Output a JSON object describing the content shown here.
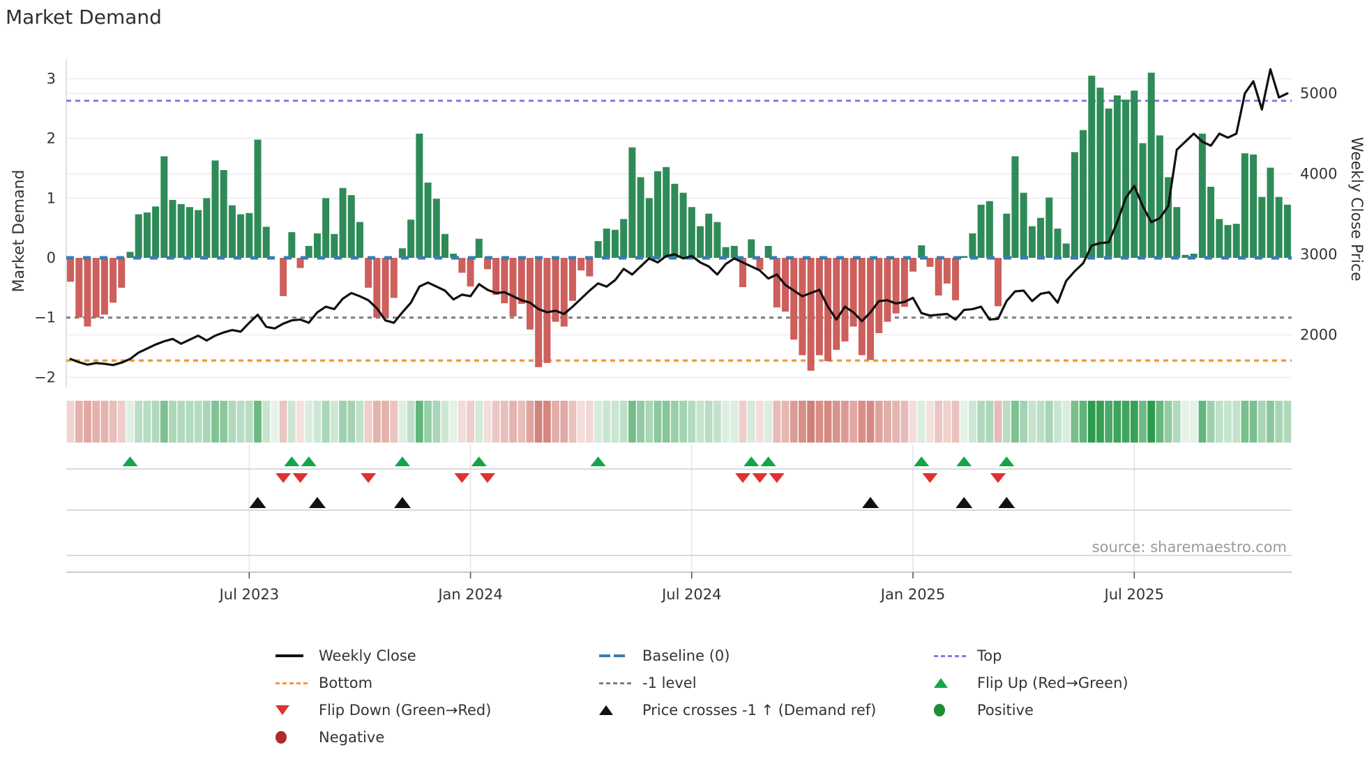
{
  "title": "Market Demand",
  "source_text": "source: sharemaestro.com",
  "axes": {
    "left_label": "Market Demand",
    "right_label": "Weekly Close Price",
    "left_ticks": [
      "3",
      "2",
      "1",
      "0",
      "−1",
      "−2"
    ],
    "left_tick_values": [
      3,
      2,
      1,
      0,
      -1,
      -2
    ],
    "right_ticks": [
      "5000",
      "4000",
      "3000",
      "2000"
    ],
    "right_tick_values": [
      5000,
      4000,
      3000,
      2000
    ],
    "x_ticks": [
      "Jul 2023",
      "Jan 2024",
      "Jul 2024",
      "Jan 2025",
      "Jul 2025"
    ],
    "x_tick_weeks": [
      21,
      47,
      73,
      99,
      125
    ]
  },
  "colors": {
    "bar_positive": "#2e8b57",
    "bar_negative": "#cd5f5c",
    "baseline_blue": "#3a7cb0",
    "top_purple": "#8678e9",
    "bottom_orange": "#f29b38",
    "minus1_gray": "#7f7f7f",
    "price_line": "#101010",
    "flip_up_green": "#14a44a",
    "flip_down_red": "#e03131",
    "cross_black": "#111111",
    "positive_circle": "#1d8c34",
    "negative_circle": "#b02a2a",
    "grid": "#ebebf0",
    "panel_line": "#cfcfcf",
    "tick_text": "#333333",
    "source_gray": "#9a9a9a"
  },
  "chart_data": {
    "type": "bar+line",
    "title": "Market Demand",
    "ylabel_left": "Market Demand",
    "ylabel_right": "Weekly Close Price",
    "n_weeks": 144,
    "ylim_demand": [
      -2.2,
      3.2
    ],
    "ylim_price": [
      1500,
      5400
    ],
    "baseline_level": 0,
    "top_level": 2.63,
    "bottom_level": -1.72,
    "minus1_level": -1,
    "demand": [
      -0.4,
      -1.0,
      -1.15,
      -1.0,
      -0.95,
      -0.75,
      -0.5,
      0.1,
      0.73,
      0.76,
      0.86,
      1.7,
      0.97,
      0.9,
      0.85,
      0.8,
      1.0,
      1.63,
      1.47,
      0.88,
      0.73,
      0.75,
      1.98,
      0.52,
      0.0,
      -0.64,
      0.43,
      -0.17,
      0.2,
      0.41,
      1.0,
      0.4,
      1.17,
      1.05,
      0.6,
      -0.5,
      -1.0,
      -1.0,
      -0.67,
      0.16,
      0.64,
      2.08,
      1.26,
      0.99,
      0.4,
      0.07,
      -0.25,
      -0.48,
      0.32,
      -0.19,
      -0.62,
      -0.76,
      -0.98,
      -0.77,
      -1.2,
      -1.83,
      -1.76,
      -1.07,
      -1.15,
      -0.72,
      -0.21,
      -0.31,
      0.28,
      0.49,
      0.47,
      0.65,
      1.85,
      1.35,
      1.0,
      1.45,
      1.52,
      1.24,
      1.09,
      0.85,
      0.53,
      0.74,
      0.6,
      0.18,
      0.2,
      -0.49,
      0.31,
      -0.2,
      0.2,
      -0.83,
      -0.9,
      -1.37,
      -1.63,
      -1.89,
      -1.63,
      -1.73,
      -1.54,
      -1.4,
      -1.15,
      -1.63,
      -1.71,
      -1.26,
      -1.07,
      -0.93,
      -0.82,
      -0.23,
      0.21,
      -0.15,
      -0.63,
      -0.43,
      -0.71,
      0.03,
      0.41,
      0.89,
      0.95,
      -0.81,
      0.74,
      1.7,
      1.09,
      0.53,
      0.67,
      1.01,
      0.49,
      0.24,
      1.77,
      2.14,
      3.05,
      2.85,
      2.5,
      2.72,
      2.65,
      2.8,
      1.92,
      3.1,
      2.05,
      1.35,
      0.85,
      0.05,
      0.07,
      2.08,
      1.19,
      0.65,
      0.55,
      0.57,
      1.75,
      1.73,
      1.02,
      1.51,
      1.02,
      0.89
    ],
    "price": [
      1700,
      1660,
      1630,
      1650,
      1640,
      1625,
      1655,
      1700,
      1780,
      1830,
      1880,
      1920,
      1950,
      1890,
      1940,
      1990,
      1930,
      1990,
      2030,
      2060,
      2040,
      2150,
      2250,
      2100,
      2080,
      2140,
      2180,
      2190,
      2150,
      2280,
      2350,
      2320,
      2450,
      2520,
      2480,
      2430,
      2330,
      2180,
      2150,
      2280,
      2400,
      2600,
      2650,
      2600,
      2550,
      2440,
      2500,
      2480,
      2630,
      2560,
      2520,
      2530,
      2480,
      2430,
      2400,
      2320,
      2280,
      2300,
      2260,
      2350,
      2450,
      2550,
      2640,
      2600,
      2680,
      2820,
      2750,
      2850,
      2950,
      2900,
      2980,
      3000,
      2950,
      2980,
      2900,
      2850,
      2750,
      2880,
      2950,
      2900,
      2850,
      2800,
      2700,
      2750,
      2620,
      2550,
      2480,
      2520,
      2560,
      2350,
      2190,
      2350,
      2280,
      2170,
      2280,
      2420,
      2430,
      2390,
      2410,
      2460,
      2270,
      2240,
      2250,
      2260,
      2190,
      2310,
      2320,
      2350,
      2190,
      2200,
      2420,
      2540,
      2550,
      2420,
      2510,
      2530,
      2400,
      2670,
      2790,
      2890,
      3110,
      3140,
      3150,
      3400,
      3700,
      3850,
      3600,
      3400,
      3450,
      3600,
      4300,
      4400,
      4500,
      4400,
      4350,
      4500,
      4450,
      4500,
      5000,
      5150,
      4800,
      5300,
      4950,
      5000
    ],
    "flip_up_weeks": [
      7,
      26,
      28,
      39,
      48,
      62,
      80,
      82,
      100,
      105,
      110
    ],
    "flip_down_weeks": [
      25,
      27,
      35,
      46,
      49,
      79,
      81,
      83,
      101,
      109
    ],
    "price_cross_weeks": [
      22,
      29,
      39,
      94,
      105,
      110
    ]
  },
  "legend": {
    "items": [
      {
        "id": "weekly-close",
        "label": "Weekly Close",
        "swatch": "line-solid",
        "color": "#101010"
      },
      {
        "id": "baseline",
        "label": "Baseline (0)",
        "swatch": "line-dashed",
        "color": "#3a7cb0"
      },
      {
        "id": "top",
        "label": "Top",
        "swatch": "line-dotted",
        "color": "#8678e9"
      },
      {
        "id": "bottom",
        "label": "Bottom",
        "swatch": "line-dotted",
        "color": "#f29b38"
      },
      {
        "id": "minus1-level",
        "label": "-1 level",
        "swatch": "line-dotted",
        "color": "#7f7f7f"
      },
      {
        "id": "flip-up",
        "label": "Flip Up (Red→Green)",
        "swatch": "triangle-up",
        "color": "#14a44a"
      },
      {
        "id": "flip-down",
        "label": "Flip Down (Green→Red)",
        "swatch": "triangle-down",
        "color": "#e03131"
      },
      {
        "id": "price-cross",
        "label": "Price crosses -1 ↑ (Demand ref)",
        "swatch": "triangle-up-black",
        "color": "#111111"
      },
      {
        "id": "positive",
        "label": "Positive",
        "swatch": "circle",
        "color": "#1d8c34"
      },
      {
        "id": "negative",
        "label": "Negative",
        "swatch": "circle",
        "color": "#b02a2a"
      }
    ]
  }
}
